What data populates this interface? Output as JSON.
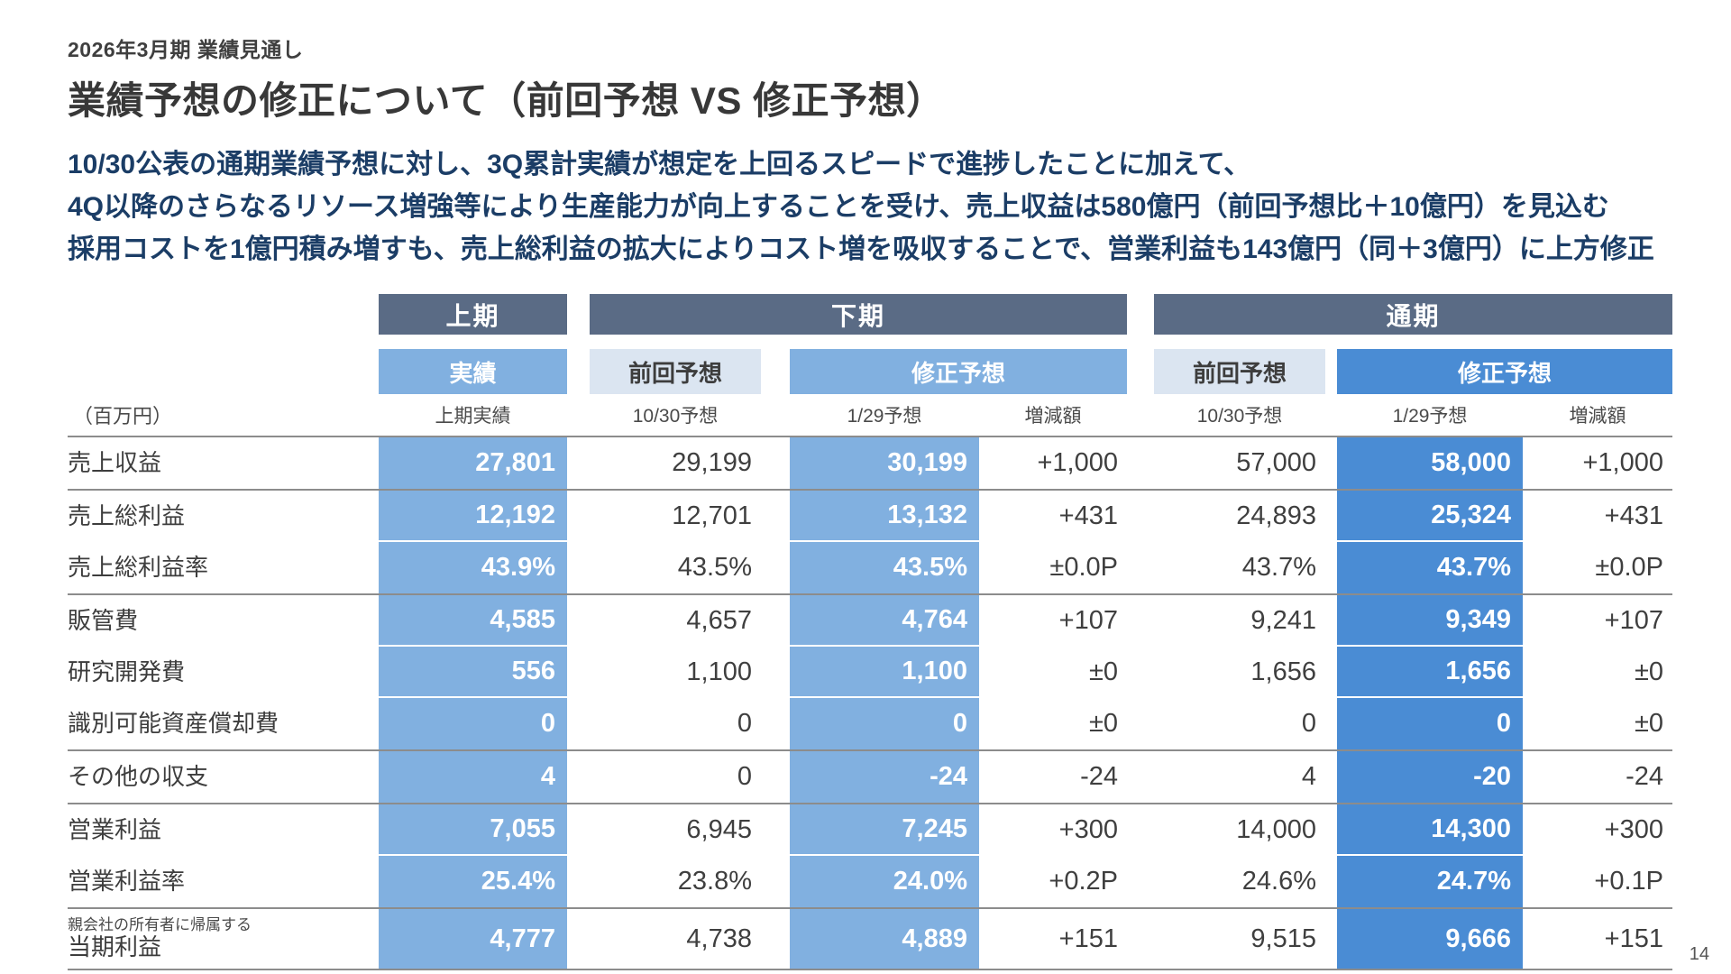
{
  "page": {
    "eyebrow": "2026年3月期 業績見通し",
    "title": "業績予想の修正について（前回予想 VS 修正予想）",
    "intro_lines": [
      "10/30公表の通期業績予想に対し、3Q累計実績が想定を上回るスピードで進捗したことに加えて、",
      "4Q以降のさらなるリソース増強等により生産能力が向上することを受け、売上収益は580億円（前回予想比＋10億円）を見込む",
      "採用コストを1億円積み増すも、売上総利益の拡大によりコスト増を吸収することで、営業利益も143億円（同＋3億円）に上方修正"
    ],
    "page_number": "14"
  },
  "colors": {
    "header-band": "#5a6b85",
    "blue-mid": "#81b0e0",
    "blue-deep": "#4a8cd4",
    "prev-box": "#dbe5f1",
    "line-gray": "#8c8c8c",
    "intro-navy": "#1b3d66"
  },
  "table": {
    "unit_label": "（百万円）",
    "sections": {
      "interim": {
        "band": "上期",
        "box": "実績",
        "col": "上期実績"
      },
      "second_half": {
        "band": "下期",
        "prev_box": "前回予想",
        "rev_box": "修正予想",
        "col_prev": "10/30予想",
        "col_rev": "1/29予想",
        "col_diff": "増減額"
      },
      "full_year": {
        "band": "通期",
        "prev_box": "前回予想",
        "rev_box": "修正予想",
        "col_prev": "10/30予想",
        "col_rev": "1/29予想",
        "col_diff": "増減額"
      }
    },
    "rows": [
      {
        "label": "売上収益",
        "interim": "27,801",
        "h2_prev": "29,199",
        "h2_rev": "30,199",
        "h2_diff": "+1,000",
        "fy_prev": "57,000",
        "fy_rev": "58,000",
        "fy_diff": "+1,000",
        "group_end": true
      },
      {
        "label": "売上総利益",
        "interim": "12,192",
        "h2_prev": "12,701",
        "h2_rev": "13,132",
        "h2_diff": "+431",
        "fy_prev": "24,893",
        "fy_rev": "25,324",
        "fy_diff": "+431",
        "group_end": false
      },
      {
        "label": "売上総利益率",
        "interim": "43.9%",
        "h2_prev": "43.5%",
        "h2_rev": "43.5%",
        "h2_diff": "±0.0P",
        "fy_prev": "43.7%",
        "fy_rev": "43.7%",
        "fy_diff": "±0.0P",
        "group_end": true
      },
      {
        "label": "販管費",
        "interim": "4,585",
        "h2_prev": "4,657",
        "h2_rev": "4,764",
        "h2_diff": "+107",
        "fy_prev": "9,241",
        "fy_rev": "9,349",
        "fy_diff": "+107",
        "group_end": false
      },
      {
        "label": "研究開発費",
        "interim": "556",
        "h2_prev": "1,100",
        "h2_rev": "1,100",
        "h2_diff": "±0",
        "fy_prev": "1,656",
        "fy_rev": "1,656",
        "fy_diff": "±0",
        "group_end": false
      },
      {
        "label": "識別可能資産償却費",
        "interim": "0",
        "h2_prev": "0",
        "h2_rev": "0",
        "h2_diff": "±0",
        "fy_prev": "0",
        "fy_rev": "0",
        "fy_diff": "±0",
        "group_end": true
      },
      {
        "label": "その他の収支",
        "interim": "4",
        "h2_prev": "0",
        "h2_rev": "-24",
        "h2_diff": "-24",
        "fy_prev": "4",
        "fy_rev": "-20",
        "fy_diff": "-24",
        "group_end": true
      },
      {
        "label": "営業利益",
        "interim": "7,055",
        "h2_prev": "6,945",
        "h2_rev": "7,245",
        "h2_diff": "+300",
        "fy_prev": "14,000",
        "fy_rev": "14,300",
        "fy_diff": "+300",
        "group_end": false
      },
      {
        "label": "営業利益率",
        "interim": "25.4%",
        "h2_prev": "23.8%",
        "h2_rev": "24.0%",
        "h2_diff": "+0.2P",
        "fy_prev": "24.6%",
        "fy_rev": "24.7%",
        "fy_diff": "+0.1P",
        "group_end": true
      },
      {
        "label": "当期利益",
        "label_note": "親会社の所有者に帰属する",
        "interim": "4,777",
        "h2_prev": "4,738",
        "h2_rev": "4,889",
        "h2_diff": "+151",
        "fy_prev": "9,515",
        "fy_rev": "9,666",
        "fy_diff": "+151",
        "group_end": true,
        "tall": true
      }
    ]
  }
}
